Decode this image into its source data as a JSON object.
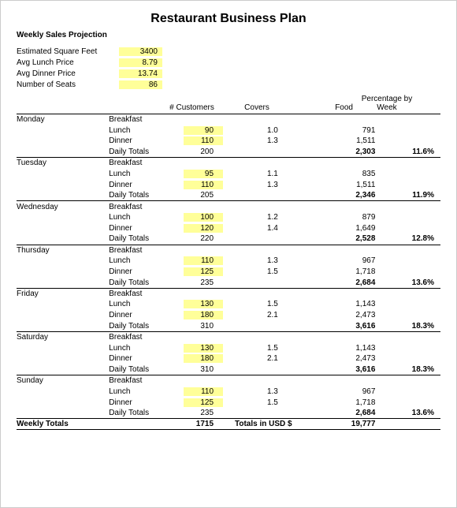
{
  "title": "Restaurant Business Plan",
  "subtitle": "Weekly Sales Projection",
  "highlight_color": "#ffff99",
  "background": "#ffffff",
  "text_color": "#000000",
  "font_family": "Arial",
  "font_size_pt": 8,
  "title_font_size_pt": 12,
  "assumptions": [
    {
      "label": "Estimated Square Feet",
      "value": "3400",
      "highlight": true
    },
    {
      "label": "Avg Lunch Price",
      "value": "8.79",
      "highlight": true
    },
    {
      "label": "Avg Dinner Price",
      "value": "13.74",
      "highlight": true
    },
    {
      "label": "Number of Seats",
      "value": "86",
      "highlight": true
    }
  ],
  "headers": {
    "customers": "# Customers",
    "covers": "Covers",
    "food": "Food",
    "pct": "Percentage by Week"
  },
  "columns": {
    "day_width": 110,
    "meal_width": 75,
    "cust_width": 75,
    "cov_width": 90,
    "food_width": 85,
    "pct_width": 70
  },
  "days": [
    {
      "name": "Monday",
      "rows": [
        {
          "meal": "Breakfast",
          "cust": "",
          "hl": false,
          "cov": "",
          "food": ""
        },
        {
          "meal": "Lunch",
          "cust": "90",
          "hl": true,
          "cov": "1.0",
          "food": "791"
        },
        {
          "meal": "Dinner",
          "cust": "110",
          "hl": true,
          "cov": "1.3",
          "food": "1,511"
        },
        {
          "meal": "Daily Totals",
          "cust": "200",
          "hl": false,
          "cov": "",
          "food": "2,303",
          "pct": "11.6%",
          "bold": true
        }
      ]
    },
    {
      "name": "Tuesday",
      "rows": [
        {
          "meal": "Breakfast",
          "cust": "",
          "hl": false,
          "cov": "",
          "food": ""
        },
        {
          "meal": "Lunch",
          "cust": "95",
          "hl": true,
          "cov": "1.1",
          "food": "835"
        },
        {
          "meal": "Dinner",
          "cust": "110",
          "hl": true,
          "cov": "1.3",
          "food": "1,511"
        },
        {
          "meal": "Daily Totals",
          "cust": "205",
          "hl": false,
          "cov": "",
          "food": "2,346",
          "pct": "11.9%",
          "bold": true
        }
      ]
    },
    {
      "name": "Wednesday",
      "rows": [
        {
          "meal": "Breakfast",
          "cust": "",
          "hl": false,
          "cov": "",
          "food": ""
        },
        {
          "meal": "Lunch",
          "cust": "100",
          "hl": true,
          "cov": "1.2",
          "food": "879"
        },
        {
          "meal": "Dinner",
          "cust": "120",
          "hl": true,
          "cov": "1.4",
          "food": "1,649"
        },
        {
          "meal": "Daily Totals",
          "cust": "220",
          "hl": false,
          "cov": "",
          "food": "2,528",
          "pct": "12.8%",
          "bold": true
        }
      ]
    },
    {
      "name": "Thursday",
      "rows": [
        {
          "meal": "Breakfast",
          "cust": "",
          "hl": false,
          "cov": "",
          "food": ""
        },
        {
          "meal": "Lunch",
          "cust": "110",
          "hl": true,
          "cov": "1.3",
          "food": "967"
        },
        {
          "meal": "Dinner",
          "cust": "125",
          "hl": true,
          "cov": "1.5",
          "food": "1,718"
        },
        {
          "meal": "Daily Totals",
          "cust": "235",
          "hl": false,
          "cov": "",
          "food": "2,684",
          "pct": "13.6%",
          "bold": true
        }
      ]
    },
    {
      "name": "Friday",
      "rows": [
        {
          "meal": "Breakfast",
          "cust": "",
          "hl": false,
          "cov": "",
          "food": ""
        },
        {
          "meal": "Lunch",
          "cust": "130",
          "hl": true,
          "cov": "1.5",
          "food": "1,143"
        },
        {
          "meal": "Dinner",
          "cust": "180",
          "hl": true,
          "cov": "2.1",
          "food": "2,473"
        },
        {
          "meal": "Daily Totals",
          "cust": "310",
          "hl": false,
          "cov": "",
          "food": "3,616",
          "pct": "18.3%",
          "bold": true
        }
      ]
    },
    {
      "name": "Saturday",
      "rows": [
        {
          "meal": "Breakfast",
          "cust": "",
          "hl": false,
          "cov": "",
          "food": ""
        },
        {
          "meal": "Lunch",
          "cust": "130",
          "hl": true,
          "cov": "1.5",
          "food": "1,143"
        },
        {
          "meal": "Dinner",
          "cust": "180",
          "hl": true,
          "cov": "2.1",
          "food": "2,473"
        },
        {
          "meal": "Daily Totals",
          "cust": "310",
          "hl": false,
          "cov": "",
          "food": "3,616",
          "pct": "18.3%",
          "bold": true
        }
      ]
    },
    {
      "name": "Sunday",
      "rows": [
        {
          "meal": "Breakfast",
          "cust": "",
          "hl": false,
          "cov": "",
          "food": ""
        },
        {
          "meal": "Lunch",
          "cust": "110",
          "hl": true,
          "cov": "1.3",
          "food": "967"
        },
        {
          "meal": "Dinner",
          "cust": "125",
          "hl": true,
          "cov": "1.5",
          "food": "1,718"
        },
        {
          "meal": "Daily Totals",
          "cust": "235",
          "hl": false,
          "cov": "",
          "food": "2,684",
          "pct": "13.6%",
          "bold": true
        }
      ]
    }
  ],
  "weekly": {
    "label": "Weekly Totals",
    "cust": "1715",
    "cov_label": "Totals in USD $",
    "food": "19,777"
  }
}
